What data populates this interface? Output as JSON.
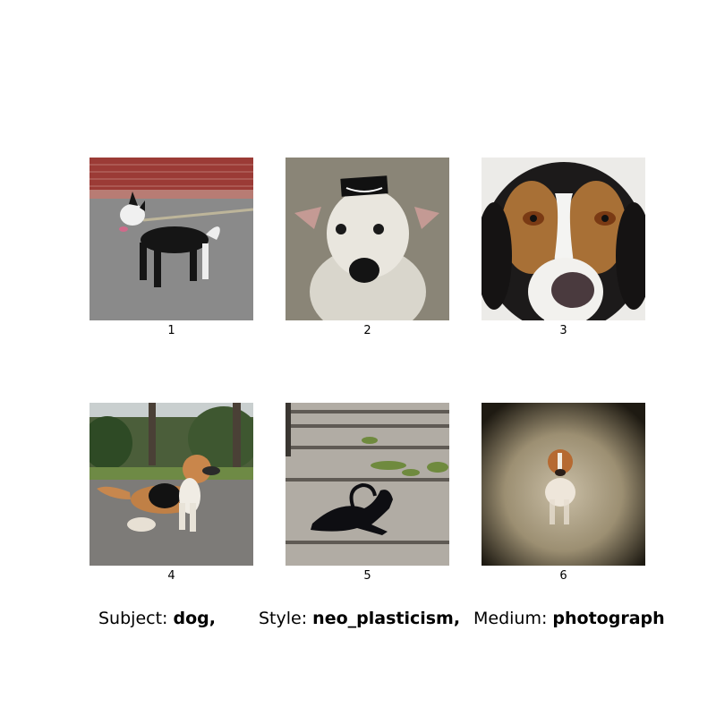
{
  "grid": {
    "images": [
      {
        "label": "1",
        "icon": "dog-photo-black-white-dog-standing-by-brick-wall"
      },
      {
        "label": "2",
        "icon": "dog-photo-white-dog-portrait-with-hat"
      },
      {
        "label": "3",
        "icon": "dog-photo-beagle-face-closeup"
      },
      {
        "label": "4",
        "icon": "dog-photo-tan-dog-in-park"
      },
      {
        "label": "5",
        "icon": "dog-photo-black-dog-sculpture-on-steps"
      },
      {
        "label": "6",
        "icon": "dog-photo-small-dog-vignette"
      }
    ]
  },
  "caption": {
    "subject_label": "Subject:",
    "subject_value": "dog,",
    "style_label": "Style:",
    "style_value": "neo_plasticism,",
    "medium_label": "Medium:",
    "medium_value": "photograph"
  }
}
